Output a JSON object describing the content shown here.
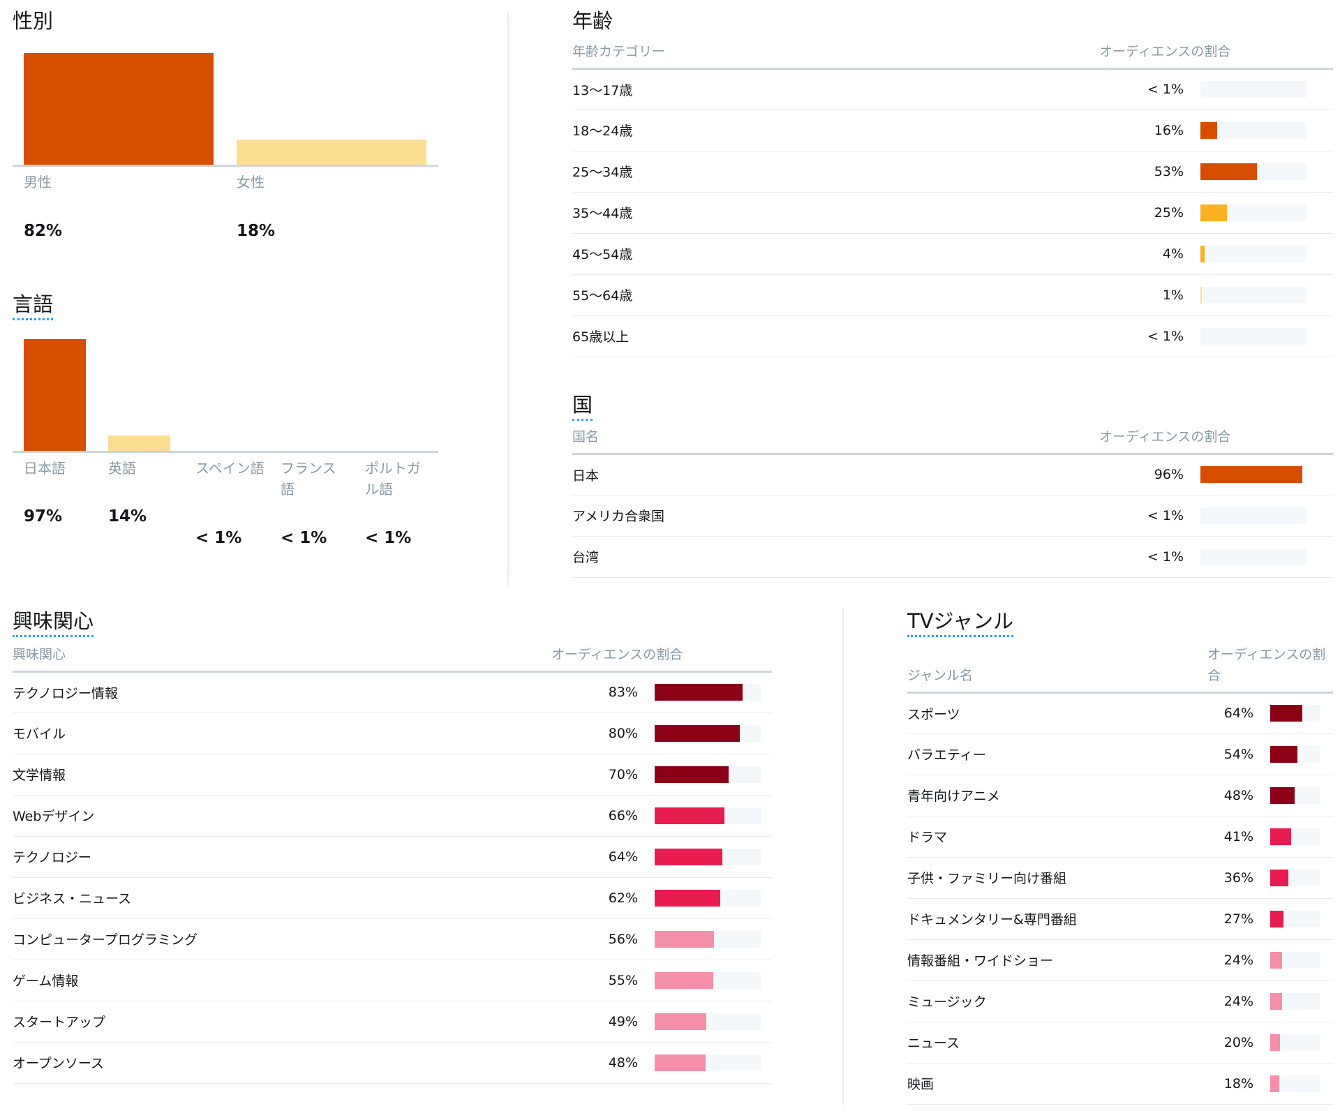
{
  "gender": {
    "title": "性別",
    "items": [
      {
        "label": "男性",
        "value": "82%",
        "share": 0.82
      },
      {
        "label": "女性",
        "value": "18%",
        "share": 0.18
      }
    ]
  },
  "language": {
    "title": "言語",
    "items": [
      {
        "label": "日本語",
        "value": "97%",
        "share": 0.97
      },
      {
        "label": "英語",
        "value": "14%",
        "share": 0.14
      },
      {
        "label": "スペイン語",
        "value": "< 1%",
        "share": 0
      },
      {
        "label": "フランス語",
        "value": "< 1%",
        "share": 0
      },
      {
        "label": "ポルトガル語",
        "value": "< 1%",
        "share": 0
      }
    ]
  },
  "age": {
    "title": "年齢",
    "col_category": "年齢カテゴリー",
    "col_share": "オーディエンスの割合",
    "rows": [
      {
        "label": "13〜17歳",
        "value": "< 1%",
        "share": 0,
        "color": "#d64e00"
      },
      {
        "label": "18〜24歳",
        "value": "16%",
        "share": 0.16,
        "color": "#d64e00"
      },
      {
        "label": "25〜34歳",
        "value": "53%",
        "share": 0.53,
        "color": "#d64e00"
      },
      {
        "label": "35〜44歳",
        "value": "25%",
        "share": 0.25,
        "color": "#fbb122"
      },
      {
        "label": "45〜54歳",
        "value": "4%",
        "share": 0.04,
        "color": "#fbb122"
      },
      {
        "label": "55〜64歳",
        "value": "1%",
        "share": 0.01,
        "color": "#fcdd94"
      },
      {
        "label": "65歳以上",
        "value": "< 1%",
        "share": 0,
        "color": "#fcdd94"
      }
    ]
  },
  "country": {
    "title": "国",
    "col_category": "国名",
    "col_share": "オーディエンスの割合",
    "rows": [
      {
        "label": "日本",
        "value": "96%",
        "share": 0.96,
        "color": "#d64e00"
      },
      {
        "label": "アメリカ合衆国",
        "value": "< 1%",
        "share": 0,
        "color": "#d64e00"
      },
      {
        "label": "台湾",
        "value": "< 1%",
        "share": 0,
        "color": "#d64e00"
      }
    ]
  },
  "interests": {
    "title": "興味関心",
    "col_category": "興味関心",
    "col_share": "オーディエンスの割合",
    "rows": [
      {
        "label": "テクノロジー情報",
        "value": "83%",
        "share": 0.83,
        "color": "#8c0016"
      },
      {
        "label": "モバイル",
        "value": "80%",
        "share": 0.8,
        "color": "#8c0016"
      },
      {
        "label": "文学情報",
        "value": "70%",
        "share": 0.7,
        "color": "#8c0016"
      },
      {
        "label": "Webデザイン",
        "value": "66%",
        "share": 0.66,
        "color": "#e81c4f"
      },
      {
        "label": "テクノロジー",
        "value": "64%",
        "share": 0.64,
        "color": "#e81c4f"
      },
      {
        "label": "ビジネス・ニュース",
        "value": "62%",
        "share": 0.62,
        "color": "#e81c4f"
      },
      {
        "label": "コンピュータープログラミング",
        "value": "56%",
        "share": 0.56,
        "color": "#f58ea8"
      },
      {
        "label": "ゲーム情報",
        "value": "55%",
        "share": 0.55,
        "color": "#f58ea8"
      },
      {
        "label": "スタートアップ",
        "value": "49%",
        "share": 0.49,
        "color": "#f58ea8"
      },
      {
        "label": "オープンソース",
        "value": "48%",
        "share": 0.48,
        "color": "#f58ea8"
      }
    ]
  },
  "tv": {
    "title": "TVジャンル",
    "col_category": "ジャンル名",
    "col_share": "オーディエンスの割合",
    "rows": [
      {
        "label": "スポーツ",
        "value": "64%",
        "share": 0.64,
        "color": "#8c0016"
      },
      {
        "label": "バラエティー",
        "value": "54%",
        "share": 0.54,
        "color": "#8c0016"
      },
      {
        "label": "青年向けアニメ",
        "value": "48%",
        "share": 0.48,
        "color": "#8c0016"
      },
      {
        "label": "ドラマ",
        "value": "41%",
        "share": 0.41,
        "color": "#e81c4f"
      },
      {
        "label": "子供・ファミリー向け番組",
        "value": "36%",
        "share": 0.36,
        "color": "#e81c4f"
      },
      {
        "label": "ドキュメンタリー&専門番組",
        "value": "27%",
        "share": 0.27,
        "color": "#e81c4f"
      },
      {
        "label": "情報番組・ワイドショー",
        "value": "24%",
        "share": 0.24,
        "color": "#f58ea8"
      },
      {
        "label": "ミュージック",
        "value": "24%",
        "share": 0.24,
        "color": "#f58ea8"
      },
      {
        "label": "ニュース",
        "value": "20%",
        "share": 0.2,
        "color": "#f58ea8"
      },
      {
        "label": "映画",
        "value": "18%",
        "share": 0.18,
        "color": "#f58ea8"
      }
    ]
  }
}
